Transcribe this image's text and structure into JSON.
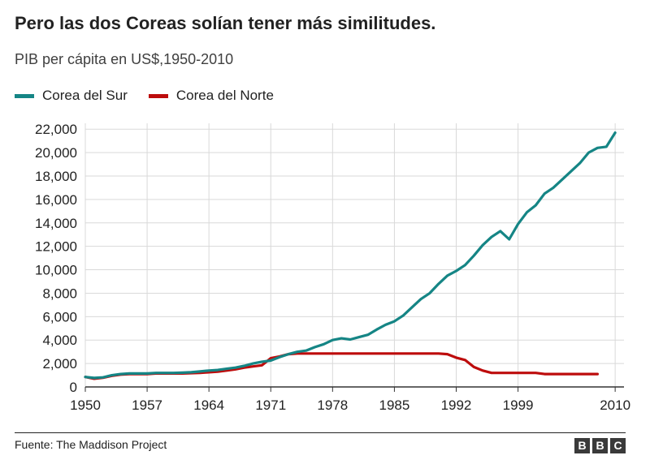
{
  "header": {
    "title": "Pero las dos Coreas solían tener más similitudes.",
    "subtitle": "PIB per cápita en US$,1950-2010"
  },
  "footer": {
    "source": "Fuente: The Maddison Project",
    "logo_letters": [
      "B",
      "B",
      "C"
    ]
  },
  "colors": {
    "south": "#158585",
    "north": "#bd0c0c",
    "grid": "#d9d9d9",
    "axis": "#333333",
    "text": "#222222"
  },
  "chart_data": {
    "type": "line",
    "title": "Pero las dos Coreas solían tener más similitudes.",
    "subtitle": "PIB per cápita en US$,1950-2010",
    "xlabel": "",
    "ylabel": "",
    "xlim": [
      1950,
      2011
    ],
    "ylim": [
      0,
      22500
    ],
    "x_ticks": [
      1950,
      1957,
      1964,
      1971,
      1978,
      1985,
      1992,
      1999,
      2010
    ],
    "y_ticks": [
      0,
      2000,
      4000,
      6000,
      8000,
      10000,
      12000,
      14000,
      16000,
      18000,
      20000,
      22000
    ],
    "y_tick_labels": [
      "0",
      "2,000",
      "4,000",
      "6,000",
      "8,000",
      "10,000",
      "12,000",
      "14,000",
      "16,000",
      "18,000",
      "20,000",
      "22,000"
    ],
    "grid": true,
    "legend_position": "top-left",
    "series": [
      {
        "name": "Corea del Sur",
        "color": "#158585",
        "x": [
          1950,
          1951,
          1952,
          1953,
          1954,
          1955,
          1956,
          1957,
          1958,
          1959,
          1960,
          1961,
          1962,
          1963,
          1964,
          1965,
          1966,
          1967,
          1968,
          1969,
          1970,
          1971,
          1972,
          1973,
          1974,
          1975,
          1976,
          1977,
          1978,
          1979,
          1980,
          1981,
          1982,
          1983,
          1984,
          1985,
          1986,
          1987,
          1988,
          1989,
          1990,
          1991,
          1992,
          1993,
          1994,
          1995,
          1996,
          1997,
          1998,
          1999,
          2000,
          2001,
          2002,
          2003,
          2004,
          2005,
          2006,
          2007,
          2008,
          2009,
          2010
        ],
        "values": [
          850,
          770,
          820,
          1000,
          1100,
          1150,
          1150,
          1150,
          1200,
          1200,
          1200,
          1220,
          1250,
          1320,
          1400,
          1450,
          1550,
          1650,
          1800,
          2000,
          2150,
          2250,
          2550,
          2800,
          3000,
          3100,
          3400,
          3650,
          4000,
          4150,
          4050,
          4250,
          4450,
          4900,
          5300,
          5600,
          6100,
          6800,
          7500,
          8000,
          8800,
          9500,
          9900,
          10400,
          11200,
          12100,
          12800,
          13300,
          12600,
          13900,
          14900,
          15500,
          16500,
          17000,
          17700,
          18400,
          19100,
          20000,
          20400,
          20500,
          21700
        ]
      },
      {
        "name": "Corea del Norte",
        "color": "#bd0c0c",
        "x": [
          1950,
          1951,
          1952,
          1953,
          1954,
          1955,
          1956,
          1957,
          1958,
          1959,
          1960,
          1961,
          1962,
          1963,
          1964,
          1965,
          1966,
          1967,
          1968,
          1969,
          1970,
          1971,
          1972,
          1973,
          1974,
          1975,
          1976,
          1977,
          1978,
          1979,
          1980,
          1981,
          1982,
          1983,
          1984,
          1985,
          1986,
          1987,
          1988,
          1989,
          1990,
          1991,
          1992,
          1993,
          1994,
          1995,
          1996,
          1997,
          1998,
          1999,
          2000,
          2001,
          2002,
          2003,
          2004,
          2005,
          2006,
          2007,
          2008
        ],
        "values": [
          850,
          700,
          780,
          950,
          1050,
          1100,
          1100,
          1100,
          1150,
          1150,
          1150,
          1150,
          1180,
          1200,
          1250,
          1300,
          1400,
          1500,
          1650,
          1750,
          1850,
          2450,
          2600,
          2800,
          2850,
          2850,
          2850,
          2850,
          2850,
          2850,
          2850,
          2850,
          2850,
          2850,
          2850,
          2850,
          2850,
          2850,
          2850,
          2850,
          2850,
          2800,
          2500,
          2300,
          1700,
          1400,
          1200,
          1200,
          1200,
          1200,
          1200,
          1200,
          1100,
          1100,
          1100,
          1100,
          1100,
          1100,
          1100
        ]
      }
    ]
  }
}
